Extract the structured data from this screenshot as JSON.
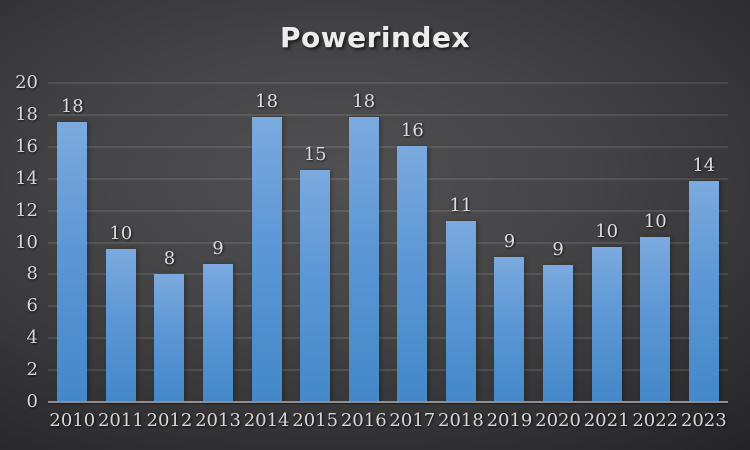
{
  "title": "Powerindex",
  "colors": {
    "background_center": "#515153",
    "background_edge": "#202022",
    "bar_top": "#7baade",
    "bar_bottom": "#4388c8",
    "gridline": "rgba(255,255,255,0.20)",
    "axis_line": "#8f9091",
    "label_text": "#d6d6d6",
    "title_text": "#ececec"
  },
  "chart_data": {
    "type": "bar",
    "title": "Powerindex",
    "categories": [
      "2010",
      "2011",
      "2012",
      "2013",
      "2014",
      "2015",
      "2016",
      "2017",
      "2018",
      "2019",
      "2020",
      "2021",
      "2022",
      "2023"
    ],
    "values": [
      18,
      10,
      8,
      9,
      18,
      15,
      18,
      16,
      11,
      9,
      9,
      10,
      10,
      14
    ],
    "values_exact": [
      17.55,
      9.6,
      8.0,
      8.65,
      17.9,
      14.55,
      17.9,
      16.05,
      11.35,
      9.1,
      8.6,
      9.7,
      10.35,
      13.85
    ],
    "data_labels": [
      "18",
      "10",
      "8",
      "9",
      "18",
      "15",
      "18",
      "16",
      "11",
      "9",
      "9",
      "10",
      "10",
      "14"
    ],
    "xlabel": "",
    "ylabel": "",
    "ylim": [
      0,
      20
    ],
    "yticks": [
      0,
      2,
      4,
      6,
      8,
      10,
      12,
      14,
      16,
      18,
      20
    ],
    "grid": true,
    "legend": false,
    "theme": "dark"
  }
}
